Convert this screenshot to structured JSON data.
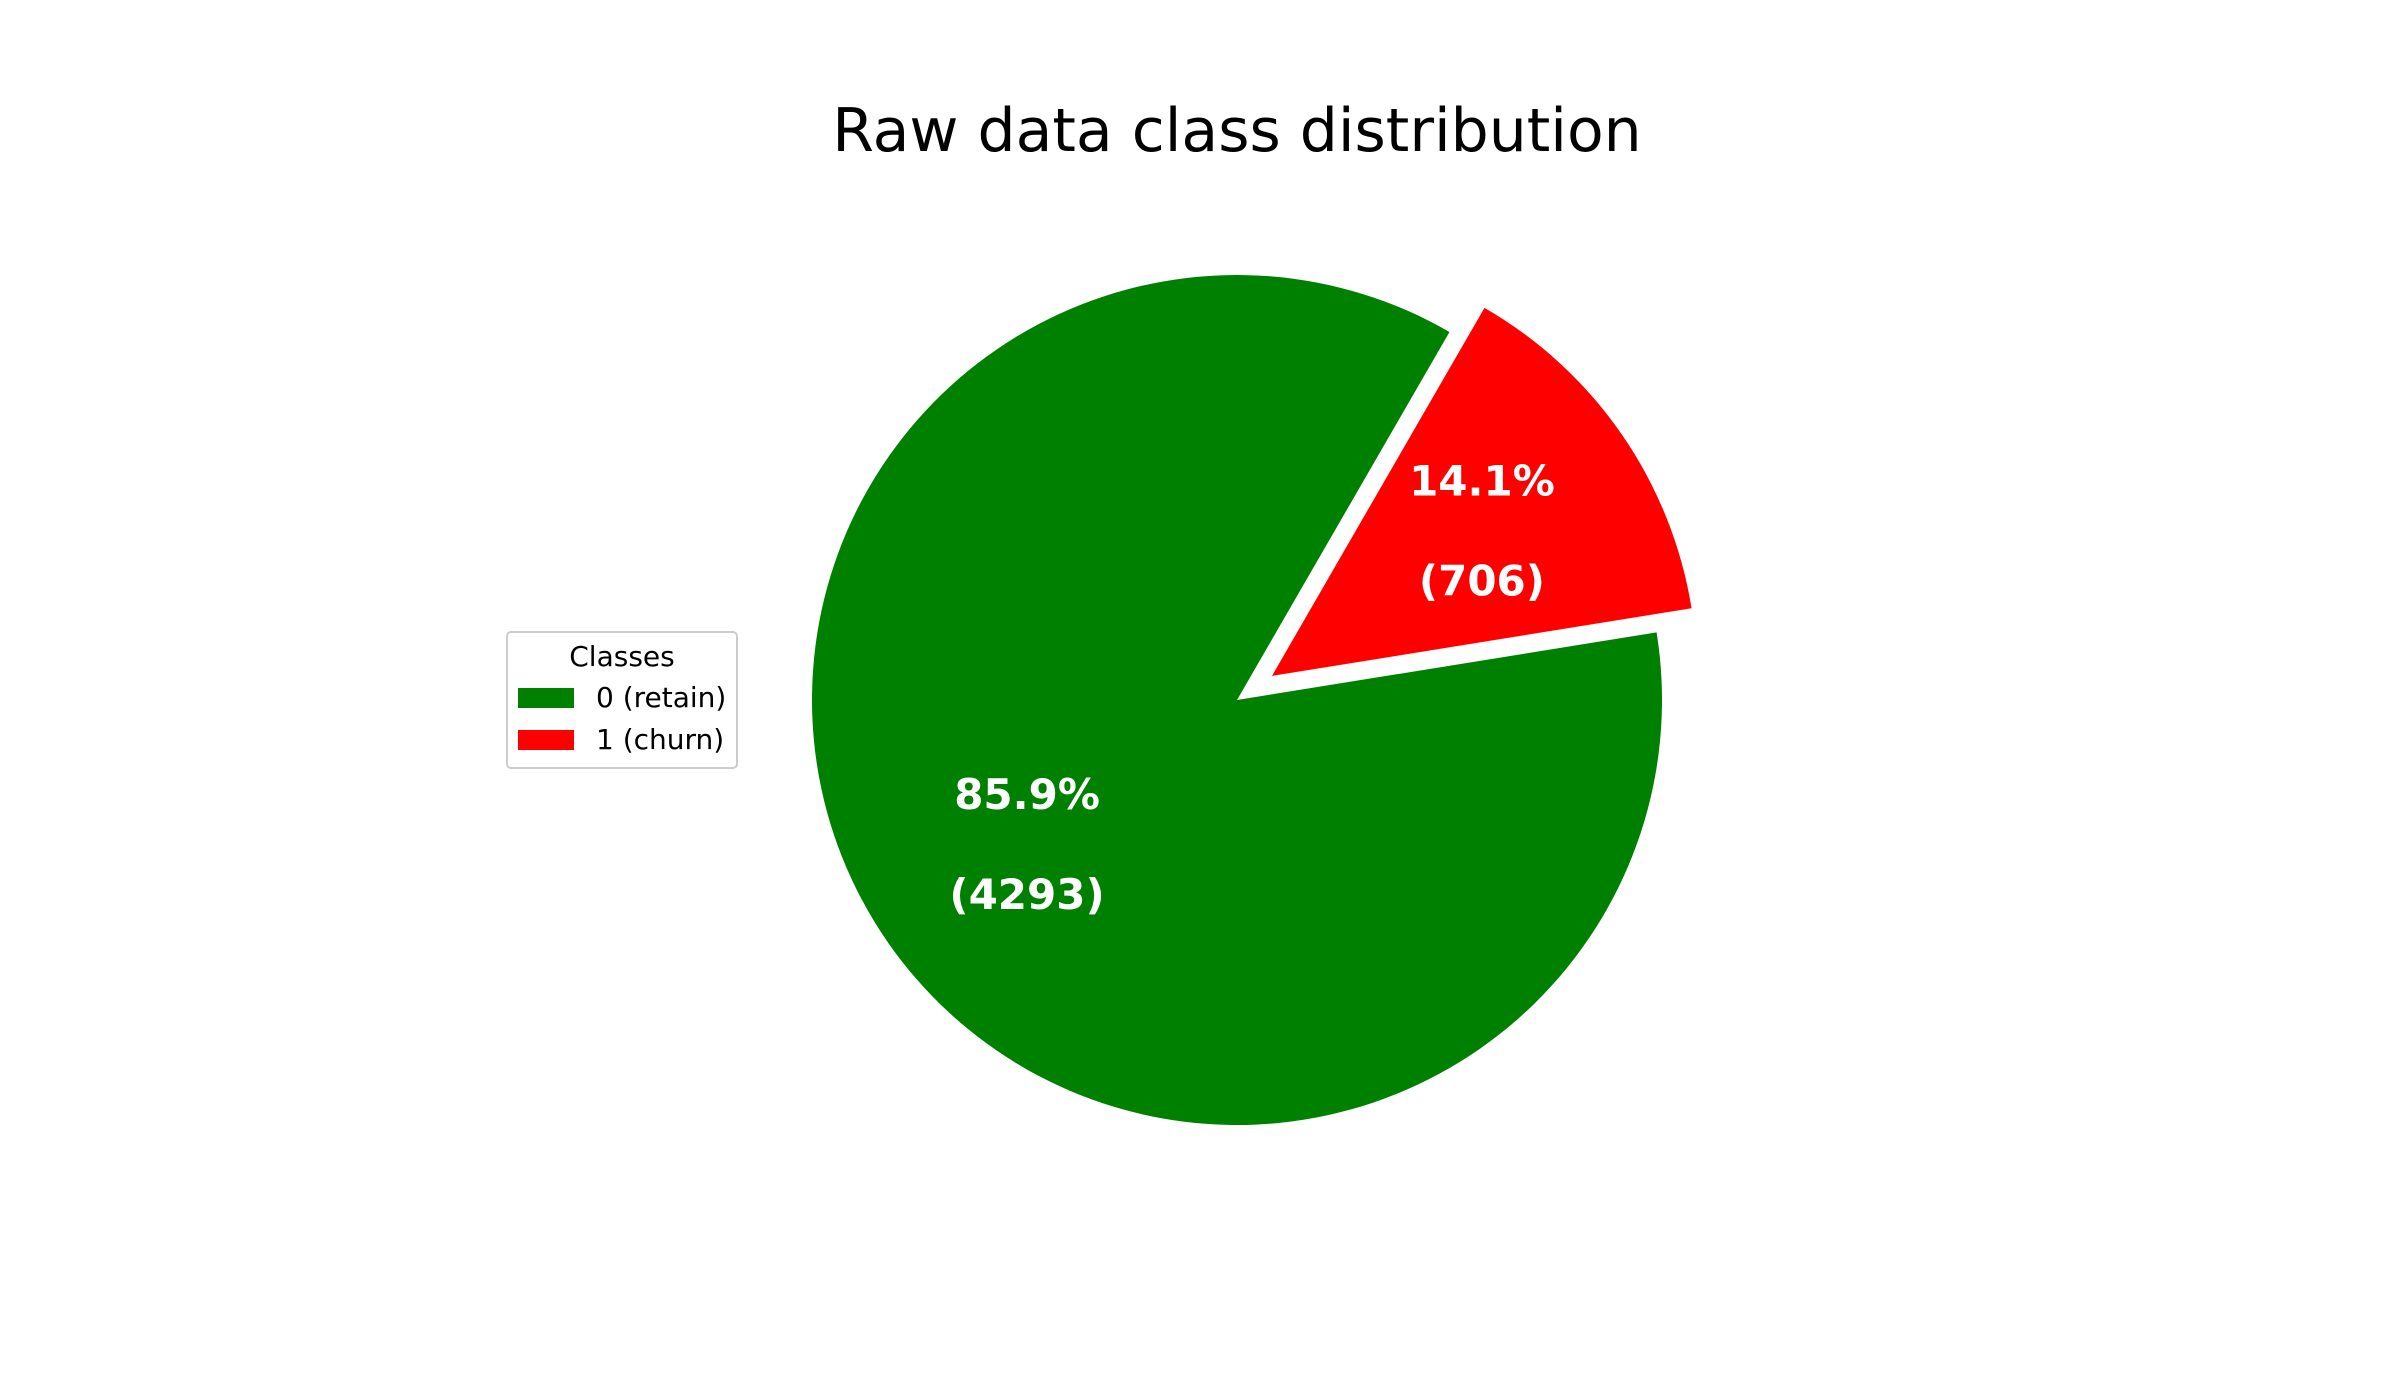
{
  "chart_data": {
    "type": "pie",
    "title": "Raw data class distribution",
    "categories": [
      "0 (retain)",
      "1 (churn)"
    ],
    "values": [
      4293,
      706
    ],
    "percent_labels": [
      "85.9%",
      "14.1%"
    ],
    "count_labels": [
      "(4293)",
      "(706)"
    ],
    "colors": [
      "#008000",
      "#ff0000"
    ],
    "explode": [
      0,
      0.1
    ],
    "legend": {
      "title": "Classes",
      "placement": "center-left"
    }
  }
}
